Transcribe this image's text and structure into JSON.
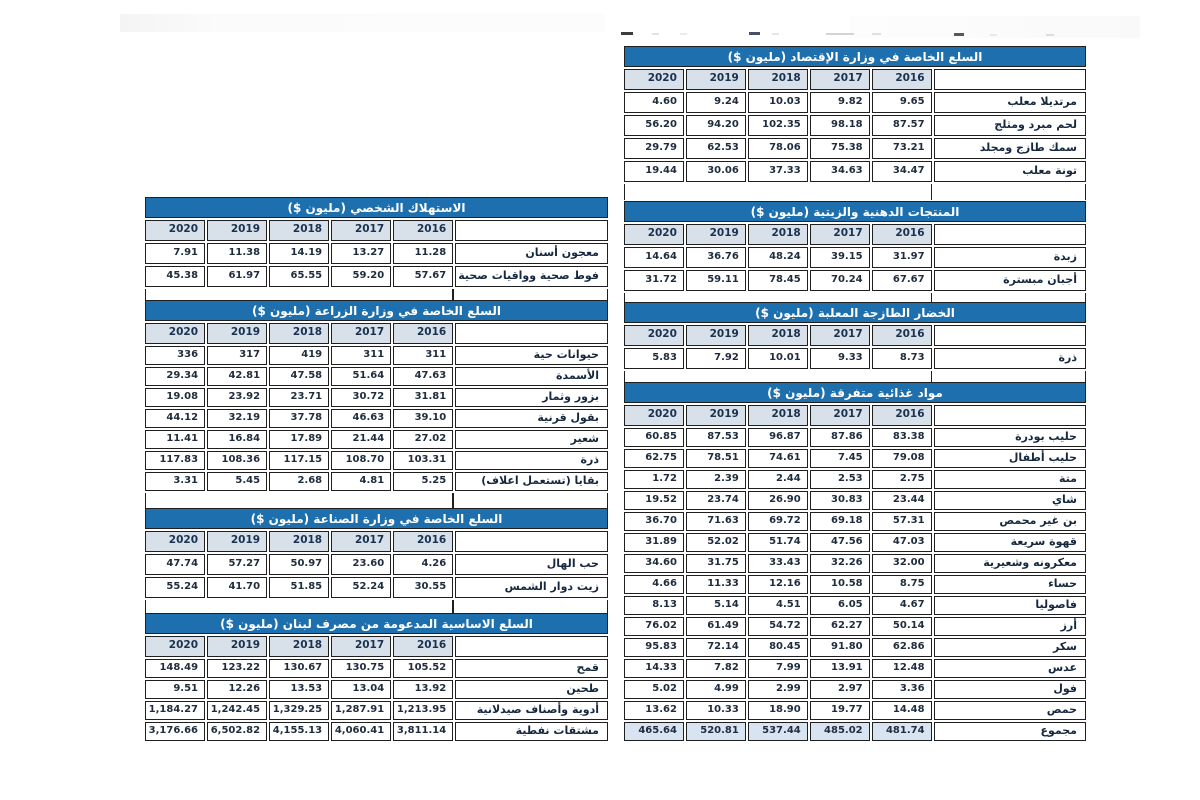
{
  "colors": {
    "header_bar": "#1e6fae",
    "year_row": "#d8e0ea",
    "total_row": "#d9e4f2",
    "border": "#1f1f1f"
  },
  "tables": [
    {
      "title": "السلع الخاصة في وزارة الإقتصاد  (مليون $)",
      "years": [
        "2016",
        "2017",
        "2018",
        "2019",
        "2020"
      ],
      "rows": [
        {
          "label": "مرتديلا معلب",
          "values": [
            "9.65",
            "9.82",
            "10.03",
            "9.24",
            "4.60"
          ]
        },
        {
          "label": "لحم مبرد ومثلج",
          "values": [
            "87.57",
            "98.18",
            "102.35",
            "94.20",
            "56.20"
          ]
        },
        {
          "label": "سمك طازج ومجلد",
          "values": [
            "73.21",
            "75.38",
            "78.06",
            "62.53",
            "29.79"
          ]
        },
        {
          "label": "تونة معلب",
          "values": [
            "34.47",
            "34.63",
            "37.33",
            "30.06",
            "19.44"
          ]
        }
      ]
    },
    {
      "title": "المنتجات الدهنية والزيتية  (مليون $)",
      "years": [
        "2016",
        "2017",
        "2018",
        "2019",
        "2020"
      ],
      "rows": [
        {
          "label": "زبدة",
          "values": [
            "31.97",
            "39.15",
            "48.24",
            "36.76",
            "14.64"
          ]
        },
        {
          "label": "أجبان مبسترة",
          "values": [
            "67.67",
            "70.24",
            "78.45",
            "59.11",
            "31.72"
          ]
        }
      ]
    },
    {
      "title": "الخضار الطازجة المعلبة (مليون $)",
      "years": [
        "2016",
        "2017",
        "2018",
        "2019",
        "2020"
      ],
      "rows": [
        {
          "label": "ذرة",
          "values": [
            "8.73",
            "9.33",
            "10.01",
            "7.92",
            "5.83"
          ]
        }
      ]
    },
    {
      "title": "مواد غذائية متفرقة (مليون $)",
      "years": [
        "2016",
        "2017",
        "2018",
        "2019",
        "2020"
      ],
      "rows": [
        {
          "label": "حليب بودرة",
          "values": [
            "83.38",
            "87.86",
            "96.87",
            "87.53",
            "60.85"
          ]
        },
        {
          "label": "حليب أطفال",
          "values": [
            "79.08",
            "7.45",
            "74.61",
            "78.51",
            "62.75"
          ]
        },
        {
          "label": "متة",
          "values": [
            "2.75",
            "2.53",
            "2.44",
            "2.39",
            "1.72"
          ]
        },
        {
          "label": "شاي",
          "values": [
            "23.44",
            "30.83",
            "26.90",
            "23.74",
            "19.52"
          ]
        },
        {
          "label": "بن غير محمص",
          "values": [
            "57.31",
            "69.18",
            "69.72",
            "71.63",
            "36.70"
          ]
        },
        {
          "label": "قهوة سريعة",
          "values": [
            "47.03",
            "47.56",
            "51.74",
            "52.02",
            "31.89"
          ]
        },
        {
          "label": "معكرونه وشعيرية",
          "values": [
            "32.00",
            "32.26",
            "33.43",
            "31.75",
            "34.60"
          ]
        },
        {
          "label": "حساء",
          "values": [
            "8.75",
            "10.58",
            "12.16",
            "11.33",
            "4.66"
          ]
        },
        {
          "label": "فاصوليا",
          "values": [
            "4.67",
            "6.05",
            "4.51",
            "5.14",
            "8.13"
          ]
        },
        {
          "label": "أرز",
          "values": [
            "50.14",
            "62.27",
            "54.72",
            "61.49",
            "76.02"
          ]
        },
        {
          "label": "سكر",
          "values": [
            "62.86",
            "91.80",
            "80.45",
            "72.14",
            "95.83"
          ]
        },
        {
          "label": "عدس",
          "values": [
            "12.48",
            "13.91",
            "7.99",
            "7.82",
            "14.33"
          ]
        },
        {
          "label": "فول",
          "values": [
            "3.36",
            "2.97",
            "2.99",
            "4.99",
            "5.02"
          ]
        },
        {
          "label": "حمص",
          "values": [
            "14.48",
            "19.77",
            "18.90",
            "10.33",
            "13.62"
          ]
        },
        {
          "label": "مجموع",
          "total": true,
          "values": [
            "481.74",
            "485.02",
            "537.44",
            "520.81",
            "465.64"
          ]
        }
      ]
    },
    {
      "title": "الاستهلاك الشخصي  (مليون $)",
      "years": [
        "2016",
        "2017",
        "2018",
        "2019",
        "2020"
      ],
      "rows": [
        {
          "label": "معجون أسنان",
          "values": [
            "11.28",
            "13.27",
            "14.19",
            "11.38",
            "7.91"
          ]
        },
        {
          "label": "فوط صحية وواقيات صحية",
          "values": [
            "57.67",
            "59.20",
            "65.55",
            "61.97",
            "45.38"
          ]
        }
      ]
    },
    {
      "title": "السلع الخاصة في وزارة الزراعة (مليون $)",
      "years": [
        "2016",
        "2017",
        "2018",
        "2019",
        "2020"
      ],
      "rows": [
        {
          "label": "حيوانات حية",
          "values": [
            "311",
            "311",
            "419",
            "317",
            "336"
          ]
        },
        {
          "label": "الأسمدة",
          "values": [
            "47.63",
            "51.64",
            "47.58",
            "42.81",
            "29.34"
          ]
        },
        {
          "label": "بزور وثمار",
          "values": [
            "31.81",
            "30.72",
            "23.71",
            "23.92",
            "19.08"
          ]
        },
        {
          "label": "بقول قرنية",
          "values": [
            "39.10",
            "46.63",
            "37.78",
            "32.19",
            "44.12"
          ]
        },
        {
          "label": "شعير",
          "values": [
            "27.02",
            "21.44",
            "17.89",
            "16.84",
            "11.41"
          ]
        },
        {
          "label": "ذرة",
          "values": [
            "103.31",
            "108.70",
            "117.15",
            "108.36",
            "117.83"
          ]
        },
        {
          "label": "بقايا (تستعمل اعلاف)",
          "values": [
            "5.25",
            "4.81",
            "2.68",
            "5.45",
            "3.31"
          ]
        }
      ]
    },
    {
      "title": "السلع الخاصة في وزارة الصناعة  (مليون $)",
      "years": [
        "2016",
        "2017",
        "2018",
        "2019",
        "2020"
      ],
      "rows": [
        {
          "label": "حب الهال",
          "values": [
            "4.26",
            "23.60",
            "50.97",
            "57.27",
            "47.74"
          ]
        },
        {
          "label": "زيت دوار الشمس",
          "values": [
            "30.55",
            "52.24",
            "51.85",
            "41.70",
            "55.24"
          ]
        }
      ]
    },
    {
      "title": "السلع الاساسية المدعومة من مصرف لبنان  (مليون $)",
      "years": [
        "2016",
        "2017",
        "2018",
        "2019",
        "2020"
      ],
      "rows": [
        {
          "label": "قمح",
          "values": [
            "105.52",
            "130.75",
            "130.67",
            "123.22",
            "148.49"
          ]
        },
        {
          "label": "طحين",
          "values": [
            "13.92",
            "13.04",
            "13.53",
            "12.26",
            "9.51"
          ]
        },
        {
          "label": "أدوية وأصناف صيدلانية",
          "values": [
            "1,213.95",
            "1,287.91",
            "1,329.25",
            "1,242.45",
            "1,184.27"
          ]
        },
        {
          "label": "مشتقات نفطية",
          "values": [
            "3,811.14",
            "4,060.41",
            "4,155.13",
            "6,502.82",
            "3,176.66"
          ]
        }
      ]
    }
  ]
}
